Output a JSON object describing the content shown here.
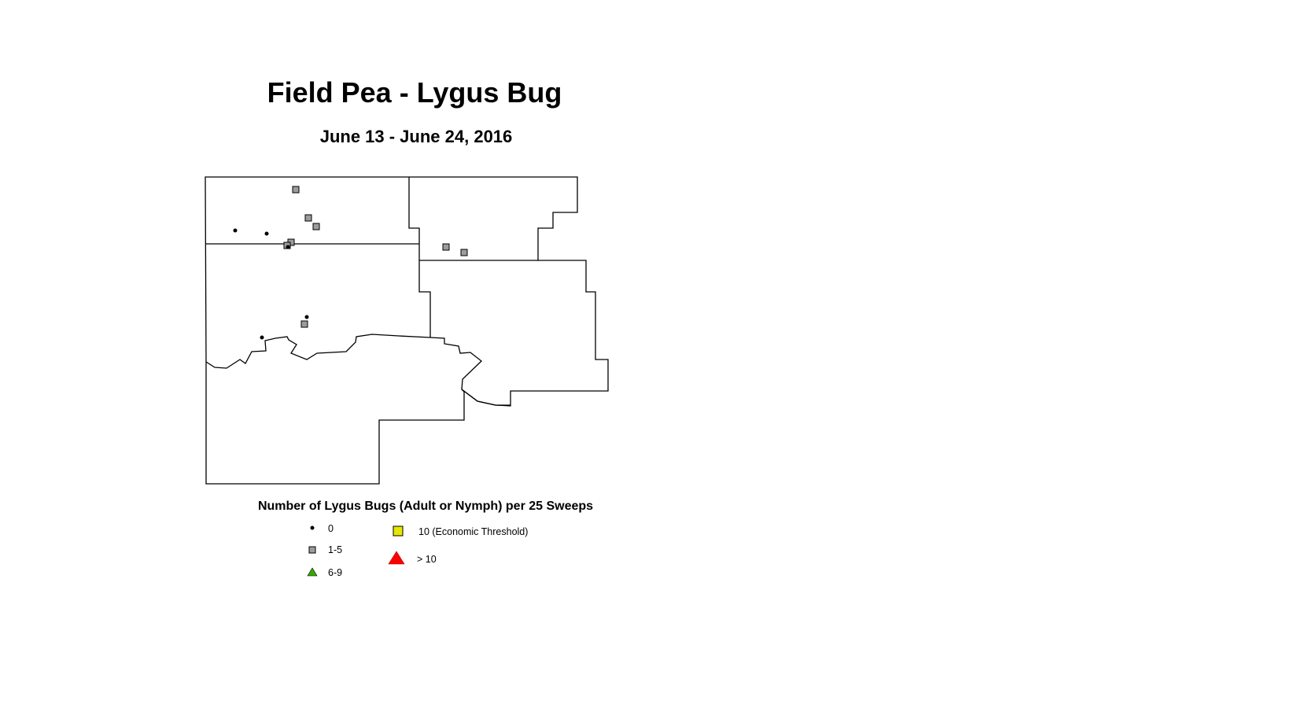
{
  "title": "Field Pea - Lygus Bug",
  "subtitle": "June 13 - June 24, 2016",
  "legend": {
    "title": "Number of Lygus Bugs (Adult or Nymph) per 25 Sweeps",
    "items": [
      {
        "label": "0",
        "symbol": "dot",
        "color": "#000000"
      },
      {
        "label": "1-5",
        "symbol": "square",
        "color": "#9c9c9c"
      },
      {
        "label": "6-9",
        "symbol": "triangle",
        "color": "#38a800"
      },
      {
        "label": "10 (Economic Threshold)",
        "symbol": "square",
        "color": "#e6e600"
      },
      {
        "label": "> 10",
        "symbol": "triangle",
        "color": "#ff0000"
      }
    ]
  },
  "sites": [
    {
      "category": "1-5"
    },
    {
      "category": "1-5"
    },
    {
      "category": "1-5"
    },
    {
      "category": "1-5"
    },
    {
      "category": "1-5"
    },
    {
      "category": "1-5"
    },
    {
      "category": "1-5"
    },
    {
      "category": "1-5"
    },
    {
      "category": "0"
    },
    {
      "category": "0"
    },
    {
      "category": "0"
    },
    {
      "category": "0"
    },
    {
      "category": "0"
    }
  ]
}
